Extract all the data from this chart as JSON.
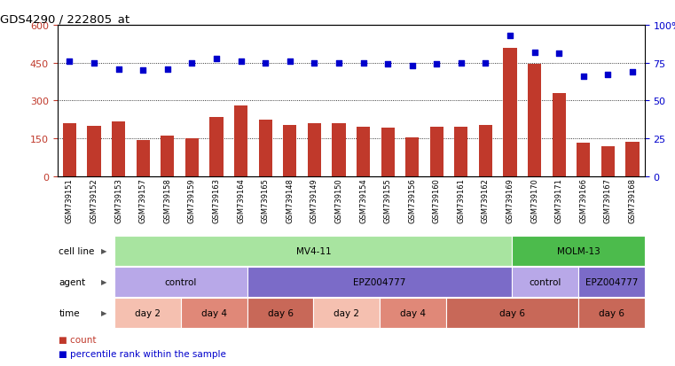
{
  "title": "GDS4290 / 222805_at",
  "samples": [
    "GSM739151",
    "GSM739152",
    "GSM739153",
    "GSM739157",
    "GSM739158",
    "GSM739159",
    "GSM739163",
    "GSM739164",
    "GSM739165",
    "GSM739148",
    "GSM739149",
    "GSM739150",
    "GSM739154",
    "GSM739155",
    "GSM739156",
    "GSM739160",
    "GSM739161",
    "GSM739162",
    "GSM739169",
    "GSM739170",
    "GSM739171",
    "GSM739166",
    "GSM739167",
    "GSM739168"
  ],
  "counts": [
    210,
    200,
    218,
    145,
    163,
    150,
    235,
    280,
    225,
    205,
    210,
    210,
    198,
    193,
    155,
    198,
    198,
    205,
    510,
    445,
    330,
    133,
    118,
    138
  ],
  "percentile_ranks": [
    76,
    75,
    71,
    70,
    71,
    75,
    78,
    76,
    75,
    76,
    75,
    75,
    75,
    74,
    73,
    74,
    75,
    75,
    93,
    82,
    81,
    66,
    67,
    69
  ],
  "bar_color": "#c0392b",
  "dot_color": "#0000cc",
  "ylim_left": [
    0,
    600
  ],
  "ylim_right": [
    0,
    100
  ],
  "yticks_left": [
    0,
    150,
    300,
    450,
    600
  ],
  "yticks_right": [
    0,
    25,
    50,
    75,
    100
  ],
  "ytick_labels_left": [
    "0",
    "150",
    "300",
    "450",
    "600"
  ],
  "ytick_labels_right": [
    "0",
    "25",
    "50",
    "75",
    "100%"
  ],
  "cell_line_groups": [
    {
      "label": "MV4-11",
      "start": 0,
      "end": 18,
      "color": "#a8e4a0"
    },
    {
      "label": "MOLM-13",
      "start": 18,
      "end": 24,
      "color": "#4cbb4c"
    }
  ],
  "agent_groups": [
    {
      "label": "control",
      "start": 0,
      "end": 6,
      "color": "#b8a8e8"
    },
    {
      "label": "EPZ004777",
      "start": 6,
      "end": 18,
      "color": "#7b6bc8"
    },
    {
      "label": "control",
      "start": 18,
      "end": 21,
      "color": "#b8a8e8"
    },
    {
      "label": "EPZ004777",
      "start": 21,
      "end": 24,
      "color": "#7b6bc8"
    }
  ],
  "time_groups": [
    {
      "label": "day 2",
      "start": 0,
      "end": 3,
      "color": "#f5c0b0"
    },
    {
      "label": "day 4",
      "start": 3,
      "end": 6,
      "color": "#e08878"
    },
    {
      "label": "day 6",
      "start": 6,
      "end": 9,
      "color": "#c86858"
    },
    {
      "label": "day 2",
      "start": 9,
      "end": 12,
      "color": "#f5c0b0"
    },
    {
      "label": "day 4",
      "start": 12,
      "end": 15,
      "color": "#e08878"
    },
    {
      "label": "day 6",
      "start": 15,
      "end": 21,
      "color": "#c86858"
    },
    {
      "label": "day 6",
      "start": 21,
      "end": 24,
      "color": "#c86858"
    }
  ],
  "legend_count_color": "#c0392b",
  "legend_dot_color": "#0000cc",
  "bg_color": "#ffffff"
}
